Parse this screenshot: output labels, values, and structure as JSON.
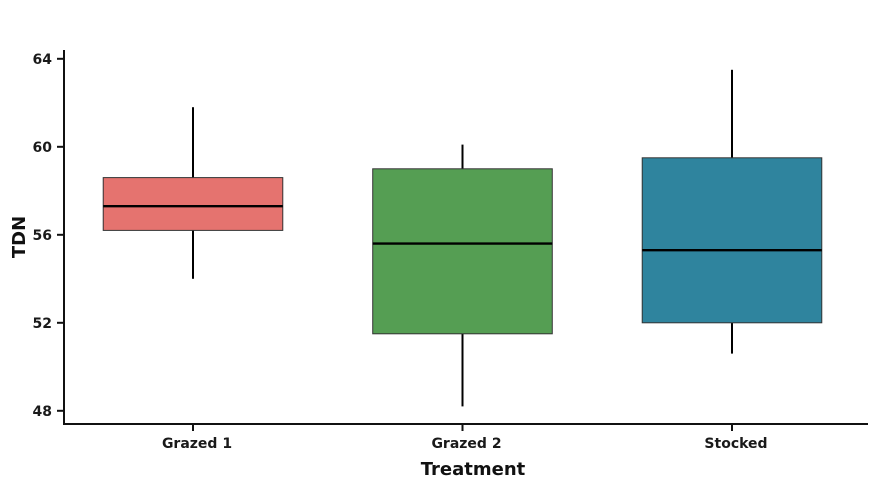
{
  "chart_data": {
    "type": "boxplot",
    "xlabel": "Treatment",
    "ylabel": "TDN",
    "ylim": [
      47.4,
      64.4
    ],
    "yticks": [
      48,
      52,
      56,
      60,
      64
    ],
    "ytick_labels": [
      "48",
      "52",
      "56",
      "60",
      "64"
    ],
    "grid": false,
    "legend": "none",
    "categories": [
      "Grazed 1",
      "Grazed 2",
      "Stocked"
    ],
    "boxes": [
      {
        "category": "Grazed 1",
        "whisker_low": 54.0,
        "q1": 56.2,
        "median": 57.3,
        "q3": 58.6,
        "whisker_high": 61.8,
        "color": "#e5736f"
      },
      {
        "category": "Grazed 2",
        "whisker_low": 48.2,
        "q1": 51.5,
        "median": 55.6,
        "q3": 59.0,
        "whisker_high": 60.1,
        "color": "#559e53"
      },
      {
        "category": "Stocked",
        "whisker_low": 50.6,
        "q1": 52.0,
        "median": 55.3,
        "q3": 59.5,
        "whisker_high": 63.5,
        "color": "#2f849e"
      }
    ]
  }
}
